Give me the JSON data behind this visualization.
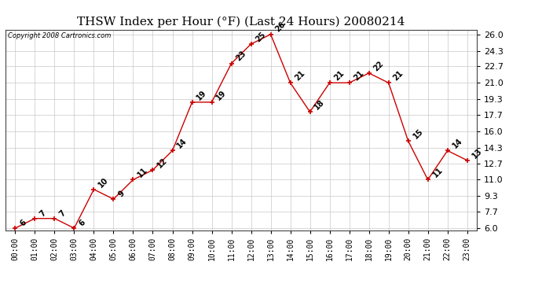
{
  "title": "THSW Index per Hour (°F) (Last 24 Hours) 20080214",
  "copyright": "Copyright 2008 Cartronics.com",
  "hours": [
    "00:00",
    "01:00",
    "02:00",
    "03:00",
    "04:00",
    "05:00",
    "06:00",
    "07:00",
    "08:00",
    "09:00",
    "10:00",
    "11:00",
    "12:00",
    "13:00",
    "14:00",
    "15:00",
    "16:00",
    "17:00",
    "18:00",
    "19:00",
    "20:00",
    "21:00",
    "22:00",
    "23:00"
  ],
  "values": [
    6,
    7,
    7,
    6,
    10,
    9,
    11,
    12,
    14,
    19,
    19,
    23,
    25,
    26,
    21,
    18,
    21,
    21,
    22,
    21,
    15,
    11,
    14,
    13
  ],
  "ylim_min": 6.0,
  "ylim_max": 26.0,
  "yticks": [
    6.0,
    7.7,
    9.3,
    11.0,
    12.7,
    14.3,
    16.0,
    17.7,
    19.3,
    21.0,
    22.7,
    24.3,
    26.0
  ],
  "line_color": "#cc0000",
  "marker_color": "#cc0000",
  "bg_color": "#ffffff",
  "grid_color": "#c8c8c8",
  "title_fontsize": 11,
  "label_fontsize": 7,
  "annotation_fontsize": 7,
  "copyright_fontsize": 6,
  "ytick_fontsize": 8
}
